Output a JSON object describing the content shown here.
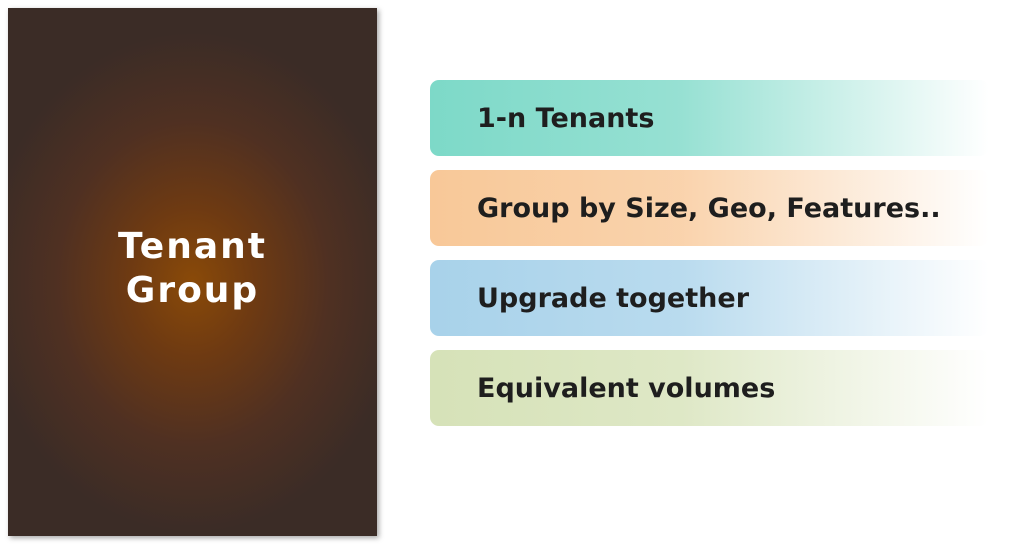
{
  "group_card": {
    "title": "Tenant\nGroup",
    "color": "#8a4a08"
  },
  "features": [
    {
      "label": "1-n Tenants",
      "color": "#7dd9c8"
    },
    {
      "label": "Group by Size, Geo, Features..",
      "color": "#f8c898"
    },
    {
      "label": "Upgrade together",
      "color": "#a8d2ea"
    },
    {
      "label": "Equivalent volumes",
      "color": "#d6e2b8"
    }
  ]
}
